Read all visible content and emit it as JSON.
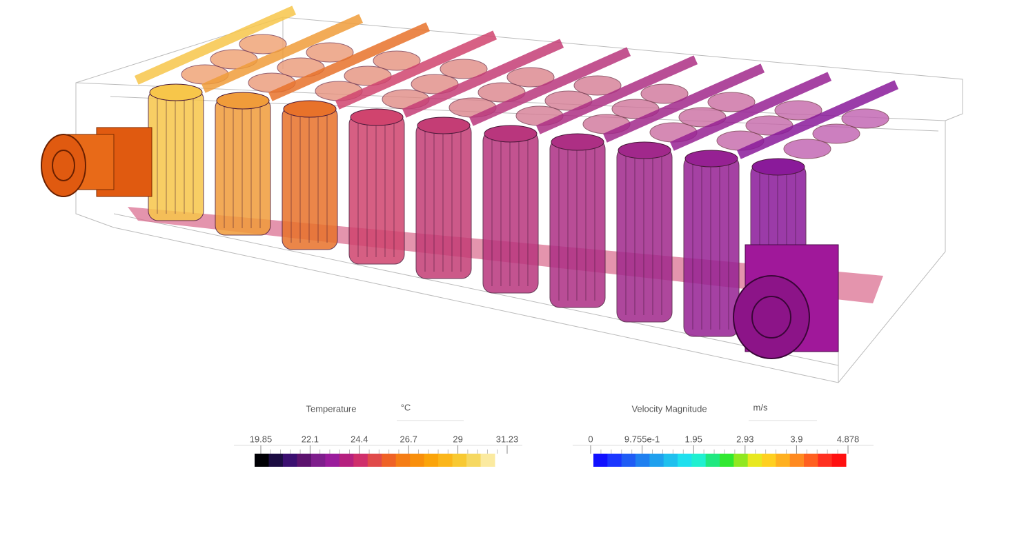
{
  "legends": [
    {
      "title": "Temperature",
      "unit": "°C",
      "ticks": [
        "19.85",
        "22.1",
        "24.4",
        "26.7",
        "29",
        "31.23"
      ],
      "colors": [
        "#000004",
        "#1b0c41",
        "#3b0f70",
        "#5c126e",
        "#7e1e8c",
        "#9a1c9c",
        "#b5207f",
        "#cf2f6b",
        "#e04a4a",
        "#ef6226",
        "#f57d15",
        "#f98f0b",
        "#fba40a",
        "#fbb61a",
        "#f8c932",
        "#f6d861",
        "#fbeaa0"
      ]
    },
    {
      "title": "Velocity Magnitude",
      "unit": "m/s",
      "ticks": [
        "0",
        "9.755e-1",
        "1.95",
        "2.93",
        "3.9",
        "4.878"
      ],
      "colors": [
        "#1010ff",
        "#1a36ff",
        "#1f5cf5",
        "#1f80f0",
        "#1fa0ee",
        "#1fc0ee",
        "#1fe0ee",
        "#20f0d0",
        "#20e880",
        "#30e830",
        "#90e820",
        "#e8e820",
        "#ffd020",
        "#ffb020",
        "#ff8a20",
        "#ff6020",
        "#ff3020",
        "#ff1010"
      ]
    }
  ]
}
